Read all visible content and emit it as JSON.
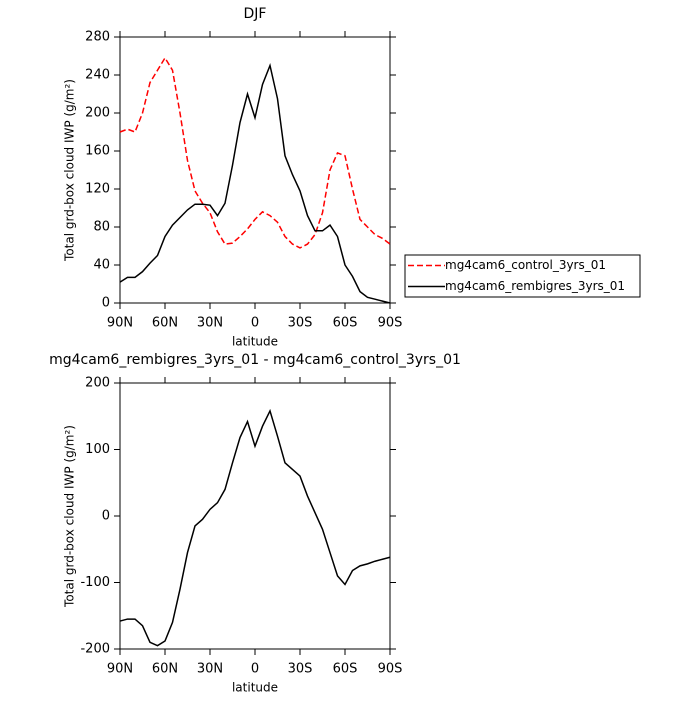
{
  "chart_data": [
    {
      "type": "line",
      "title": "DJF",
      "xlabel": "latitude",
      "ylabel": "Total grd-box cloud IWP (g/m²)",
      "x": [
        90,
        85,
        80,
        75,
        70,
        65,
        60,
        55,
        50,
        45,
        40,
        35,
        30,
        25,
        20,
        15,
        10,
        5,
        0,
        -5,
        -10,
        -15,
        -20,
        -25,
        -30,
        -35,
        -40,
        -45,
        -50,
        -55,
        -60,
        -65,
        -70,
        -75,
        -80,
        -85,
        -90
      ],
      "series": [
        {
          "name": "mg4cam6_control_3yrs_01",
          "color": "#ff0000",
          "line_style": "dashed",
          "values": [
            180,
            183,
            180,
            200,
            232,
            245,
            258,
            245,
            200,
            150,
            118,
            105,
            95,
            75,
            62,
            63,
            70,
            78,
            88,
            96,
            92,
            85,
            70,
            62,
            58,
            62,
            72,
            95,
            140,
            158,
            155,
            120,
            88,
            80,
            72,
            68,
            62
          ]
        },
        {
          "name": "mg4cam6_rembigres_3yrs_01",
          "color": "#000000",
          "line_style": "solid",
          "values": [
            22,
            27,
            27,
            33,
            42,
            50,
            70,
            82,
            90,
            98,
            104,
            104,
            103,
            92,
            105,
            145,
            190,
            220,
            195,
            230,
            250,
            215,
            155,
            135,
            118,
            92,
            76,
            76,
            82,
            70,
            40,
            28,
            12,
            6,
            4,
            2,
            0
          ]
        }
      ],
      "xlim": [
        90,
        -90
      ],
      "xticks": [
        {
          "value": 90,
          "label": "90N"
        },
        {
          "value": 60,
          "label": "60N"
        },
        {
          "value": 30,
          "label": "30N"
        },
        {
          "value": 0,
          "label": "0"
        },
        {
          "value": -30,
          "label": "30S"
        },
        {
          "value": -60,
          "label": "60S"
        },
        {
          "value": -90,
          "label": "90S"
        }
      ],
      "ylim": [
        0,
        280
      ],
      "yticks": [
        0,
        40,
        80,
        120,
        160,
        200,
        240,
        280
      ],
      "legend": "right"
    },
    {
      "type": "line",
      "title": "mg4cam6_rembigres_3yrs_01 - mg4cam6_control_3yrs_01",
      "xlabel": "latitude",
      "ylabel": "Total grd-box cloud IWP (g/m²)",
      "x": [
        90,
        85,
        80,
        75,
        70,
        65,
        60,
        55,
        50,
        45,
        40,
        35,
        30,
        25,
        20,
        15,
        10,
        5,
        0,
        -5,
        -10,
        -15,
        -20,
        -25,
        -30,
        -35,
        -40,
        -45,
        -50,
        -55,
        -60,
        -65,
        -70,
        -75,
        -80,
        -85,
        -90
      ],
      "series": [
        {
          "color": "#000000",
          "line_style": "solid",
          "values": [
            -158,
            -155,
            -155,
            -165,
            -190,
            -195,
            -188,
            -160,
            -110,
            -55,
            -15,
            -5,
            10,
            20,
            40,
            80,
            118,
            142,
            105,
            135,
            158,
            120,
            80,
            70,
            60,
            30,
            5,
            -20,
            -55,
            -90,
            -103,
            -82,
            -75,
            -72,
            -68,
            -65,
            -62
          ]
        }
      ],
      "xlim": [
        90,
        -90
      ],
      "xticks": [
        {
          "value": 90,
          "label": "90N"
        },
        {
          "value": 60,
          "label": "60N"
        },
        {
          "value": 30,
          "label": "30N"
        },
        {
          "value": 0,
          "label": "0"
        },
        {
          "value": -30,
          "label": "30S"
        },
        {
          "value": -60,
          "label": "60S"
        },
        {
          "value": -90,
          "label": "90S"
        }
      ],
      "ylim": [
        -200,
        200
      ],
      "yticks": [
        -200,
        -100,
        0,
        100,
        200
      ]
    }
  ]
}
